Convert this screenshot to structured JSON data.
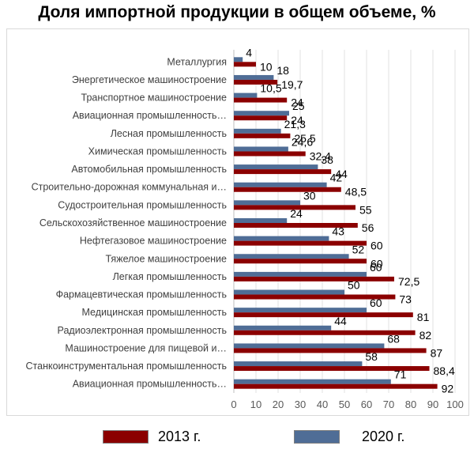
{
  "chart_data": {
    "type": "bar",
    "orientation": "horizontal",
    "title": "Доля импортной продукции в общем объеме, %",
    "categories": [
      "Металлургия",
      "Энергетическое машиностроение",
      "Транспортное машиностроение",
      "Авиационная промышленность…",
      "Лесная промышленность",
      "Химическая промышленность",
      "Автомобильная промышленность",
      "Строительно-дорожная коммунальная и…",
      "Судостроительная промышленность",
      "Сельскохозяйственное машиностроение",
      "Нефтегазовое машиностроение",
      "Тяжелое машиностроение",
      "Легкая промышленность",
      "Фармацевтическая промышленность",
      "Медицинская промышленность",
      "Радиоэлектронная промышленность",
      "Машиностроение для пищевой и…",
      "Станкоинструментальная промышленность",
      "Авиационная промышленность…"
    ],
    "series": [
      {
        "name": "2013 г.",
        "color": "#8b0000",
        "values": [
          10,
          19.7,
          24,
          24,
          25.5,
          32.4,
          44,
          48.5,
          55,
          56,
          60,
          60,
          72.5,
          73,
          81,
          82,
          87,
          88.4,
          92
        ],
        "labels": [
          "10",
          "19,7",
          "24",
          "24",
          "25,5",
          "32,4",
          "44",
          "48,5",
          "55",
          "56",
          "60",
          "60",
          "72,5",
          "73",
          "81",
          "82",
          "87",
          "88,4",
          "92"
        ]
      },
      {
        "name": "2020 г.",
        "color": "#4f6d96",
        "values": [
          4,
          18,
          10.5,
          25,
          21.3,
          24.6,
          38,
          42,
          30,
          24,
          43,
          52,
          60,
          50,
          60,
          44,
          68,
          58,
          71
        ],
        "labels": [
          "4",
          "18",
          "10,5",
          "25",
          "21,3",
          "24,6",
          "38",
          "42",
          "30",
          "24",
          "43",
          "52",
          "60",
          "50",
          "60",
          "44",
          "68",
          "58",
          "71"
        ]
      }
    ],
    "xlim": [
      0,
      100
    ],
    "xticks": [
      "0",
      "10",
      "20",
      "30",
      "40",
      "50",
      "60",
      "70",
      "80",
      "90",
      "100"
    ],
    "grid": true,
    "legend_position": "bottom"
  }
}
